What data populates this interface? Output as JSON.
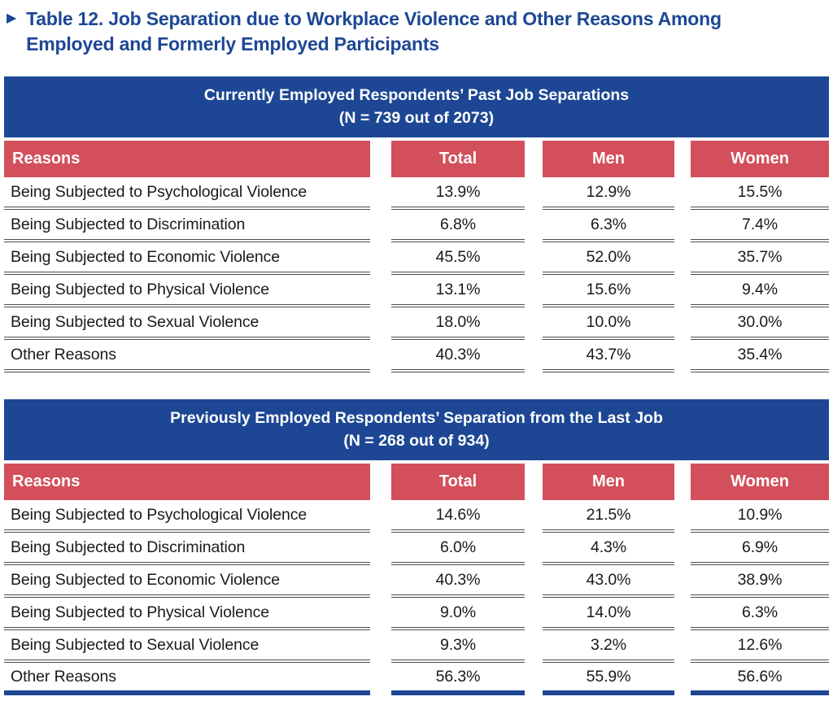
{
  "title": {
    "bullet_icon": "▶",
    "lines": [
      "Table 12. Job Separation due to Workplace Violence and Other Reasons Among",
      "Employed and Formerly Employed Participants"
    ]
  },
  "colors": {
    "header_blue": "#1d4794",
    "header_red": "#d34f5c",
    "row_line_gray": "#4d4d4d",
    "text_black": "#1a1a1a",
    "banner_text_white": "#ffffff"
  },
  "tables": [
    {
      "title": "Currently Employed Respondents’ Past Job Separations",
      "subtitle": "(N = 739 out of 2073)",
      "columns": [
        "Reasons",
        "Total",
        "Men",
        "Women"
      ],
      "rows": [
        [
          "Being Subjected to Psychological Violence",
          "13.9%",
          "12.9%",
          "15.5%"
        ],
        [
          "Being Subjected to Discrimination",
          "6.8%",
          "6.3%",
          "7.4%"
        ],
        [
          "Being Subjected to Economic Violence",
          "45.5%",
          "52.0%",
          "35.7%"
        ],
        [
          "Being Subjected to Physical Violence",
          "13.1%",
          "15.6%",
          "9.4%"
        ],
        [
          "Being Subjected to Sexual Violence",
          "18.0%",
          "10.0%",
          "30.0%"
        ],
        [
          "Other Reasons",
          "40.3%",
          "43.7%",
          "35.4%"
        ]
      ],
      "bottom_border": "double-gray"
    },
    {
      "title": "Previously Employed Respondents’ Separation from the Last Job",
      "subtitle": "(N = 268 out of 934)",
      "columns": [
        "Reasons",
        "Total",
        "Men",
        "Women"
      ],
      "rows": [
        [
          "Being Subjected to Psychological Violence",
          "14.6%",
          "21.5%",
          "10.9%"
        ],
        [
          "Being Subjected to Discrimination",
          "6.0%",
          "4.3%",
          "6.9%"
        ],
        [
          "Being Subjected to Economic Violence",
          "40.3%",
          "43.0%",
          "38.9%"
        ],
        [
          "Being Subjected to Physical Violence",
          "9.0%",
          "14.0%",
          "6.3%"
        ],
        [
          "Being Subjected to Sexual Violence",
          "9.3%",
          "3.2%",
          "12.6%"
        ],
        [
          "Other Reasons",
          "56.3%",
          "55.9%",
          "56.6%"
        ]
      ],
      "bottom_border": "thick-blue"
    }
  ]
}
